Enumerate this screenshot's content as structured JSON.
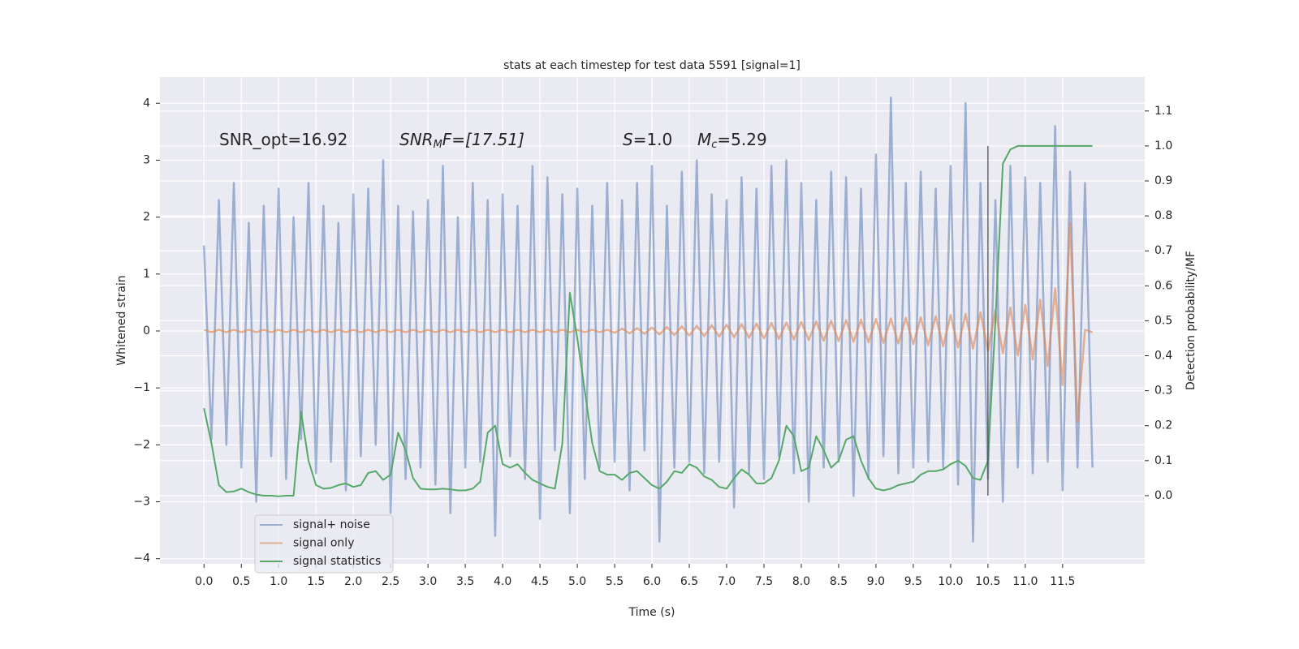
{
  "chart_data": {
    "type": "line",
    "title": "stats at each timestep for test data 5591 [signal=1]",
    "xlabel": "Time (s)",
    "ylabel": "Whitened strain",
    "y2label": "Detection probability/MF",
    "annotations": [
      {
        "base": "SNR_opt=16.92"
      },
      {
        "base": "SNR",
        "sub": "M",
        "tail": "F=[17.51]"
      },
      {
        "base": "S",
        "tail": "=1.0"
      },
      {
        "base": "M",
        "sub": "c",
        "tail": "=5.29"
      }
    ],
    "x": [
      0,
      0.1,
      0.2,
      0.3,
      0.4,
      0.5,
      0.6,
      0.7,
      0.8,
      0.9,
      1,
      1.1,
      1.2,
      1.3,
      1.4,
      1.5,
      1.6,
      1.7,
      1.8,
      1.9,
      2,
      2.1,
      2.2,
      2.3,
      2.4,
      2.5,
      2.6,
      2.7,
      2.8,
      2.9,
      3,
      3.1,
      3.2,
      3.3,
      3.4,
      3.5,
      3.6,
      3.7,
      3.8,
      3.9,
      4,
      4.1,
      4.2,
      4.3,
      4.4,
      4.5,
      4.6,
      4.7,
      4.8,
      4.9,
      5,
      5.1,
      5.2,
      5.3,
      5.4,
      5.5,
      5.6,
      5.7,
      5.8,
      5.9,
      6,
      6.1,
      6.2,
      6.3,
      6.4,
      6.5,
      6.6,
      6.7,
      6.8,
      6.9,
      7,
      7.1,
      7.2,
      7.3,
      7.4,
      7.5,
      7.6,
      7.7,
      7.8,
      7.9,
      8,
      8.1,
      8.2,
      8.3,
      8.4,
      8.5,
      8.6,
      8.7,
      8.8,
      8.9,
      9,
      9.1,
      9.2,
      9.3,
      9.4,
      9.5,
      9.6,
      9.7,
      9.8,
      9.9,
      10,
      10.1,
      10.2,
      10.3,
      10.4,
      10.5,
      10.6,
      10.7,
      10.8,
      10.9,
      11,
      11.1,
      11.2,
      11.3,
      11.4,
      11.5,
      11.6,
      11.7,
      11.8,
      11.9
    ],
    "series": [
      {
        "name": "signal+ noise",
        "color": "#4c72b0",
        "opacity": 0.5,
        "axis": "y",
        "values": [
          1.5,
          -1.9,
          2.3,
          -2.0,
          2.6,
          -2.4,
          1.9,
          -3.0,
          2.2,
          -2.2,
          2.5,
          -2.6,
          2.0,
          -1.9,
          2.6,
          -2.5,
          2.2,
          -2.3,
          1.9,
          -2.8,
          2.4,
          -2.2,
          2.5,
          -2.0,
          3.0,
          -3.2,
          2.2,
          -2.6,
          2.1,
          -2.4,
          2.3,
          -2.7,
          2.9,
          -3.2,
          2.0,
          -2.4,
          2.6,
          -2.3,
          2.3,
          -3.6,
          2.4,
          -2.2,
          2.2,
          -2.6,
          2.9,
          -3.3,
          2.7,
          -2.1,
          2.4,
          -3.2,
          2.5,
          -2.6,
          2.2,
          -2.4,
          2.6,
          -2.3,
          2.3,
          -2.8,
          2.6,
          -2.1,
          2.9,
          -3.7,
          2.2,
          -2.4,
          2.8,
          -2.3,
          3.0,
          -2.5,
          2.4,
          -2.3,
          2.3,
          -3.1,
          2.7,
          -2.5,
          2.5,
          -2.6,
          2.9,
          -2.2,
          3.0,
          -2.5,
          2.6,
          -3.0,
          2.3,
          -2.4,
          2.8,
          -2.3,
          2.7,
          -2.9,
          2.5,
          -2.6,
          3.1,
          -2.2,
          4.1,
          -2.5,
          2.6,
          -2.4,
          2.8,
          -2.3,
          2.5,
          -2.4,
          2.9,
          -2.7,
          4.0,
          -3.7,
          2.6,
          -2.6,
          2.3,
          -3.0,
          2.9,
          -2.4,
          2.7,
          -2.5,
          2.6,
          -2.3,
          3.6,
          -2.8,
          2.8,
          -2.4,
          2.6,
          -2.4
        ]
      },
      {
        "name": "signal only",
        "color": "#dd8452",
        "opacity": 0.6,
        "axis": "y",
        "values": [
          0.02,
          -0.02,
          0.02,
          -0.02,
          0.02,
          -0.02,
          0.02,
          -0.02,
          0.02,
          -0.02,
          0.02,
          -0.02,
          0.02,
          -0.02,
          0.02,
          -0.02,
          0.02,
          -0.02,
          0.02,
          -0.02,
          0.02,
          -0.02,
          0.02,
          -0.02,
          0.02,
          -0.02,
          0.02,
          -0.02,
          0.02,
          -0.02,
          0.02,
          -0.02,
          0.02,
          -0.02,
          0.02,
          -0.02,
          0.02,
          -0.02,
          0.02,
          -0.02,
          0.02,
          -0.02,
          0.02,
          -0.02,
          0.02,
          -0.02,
          0.02,
          -0.02,
          0.02,
          -0.02,
          0.02,
          -0.02,
          0.02,
          -0.02,
          0.02,
          -0.03,
          0.04,
          -0.04,
          0.05,
          -0.05,
          0.06,
          -0.06,
          0.07,
          -0.07,
          0.08,
          -0.08,
          0.09,
          -0.09,
          0.1,
          -0.1,
          0.11,
          -0.11,
          0.12,
          -0.12,
          0.13,
          -0.13,
          0.14,
          -0.14,
          0.15,
          -0.15,
          0.16,
          -0.16,
          0.17,
          -0.17,
          0.18,
          -0.18,
          0.19,
          -0.19,
          0.2,
          -0.2,
          0.21,
          -0.21,
          0.22,
          -0.22,
          0.23,
          -0.23,
          0.24,
          -0.25,
          0.26,
          -0.27,
          0.28,
          -0.29,
          0.3,
          -0.31,
          0.33,
          -0.35,
          0.37,
          -0.39,
          0.41,
          -0.43,
          0.46,
          -0.5,
          0.55,
          -0.62,
          0.75,
          -0.95,
          1.9,
          -1.6,
          0.02,
          -0.02
        ]
      },
      {
        "name": "signal statistics",
        "color": "#55a868",
        "opacity": 1,
        "axis": "y2",
        "values": [
          0.25,
          0.15,
          0.03,
          0.01,
          0.012,
          0.02,
          0.01,
          0.003,
          0.0,
          0.0,
          -0.002,
          0.0,
          0.0,
          0.24,
          0.1,
          0.03,
          0.02,
          0.022,
          0.03,
          0.035,
          0.025,
          0.03,
          0.065,
          0.07,
          0.045,
          0.06,
          0.18,
          0.13,
          0.05,
          0.02,
          0.018,
          0.018,
          0.02,
          0.018,
          0.015,
          0.015,
          0.02,
          0.04,
          0.18,
          0.2,
          0.09,
          0.08,
          0.09,
          0.065,
          0.045,
          0.035,
          0.025,
          0.02,
          0.15,
          0.58,
          0.45,
          0.3,
          0.15,
          0.07,
          0.06,
          0.06,
          0.045,
          0.065,
          0.07,
          0.05,
          0.03,
          0.02,
          0.04,
          0.07,
          0.065,
          0.09,
          0.08,
          0.055,
          0.045,
          0.025,
          0.02,
          0.05,
          0.075,
          0.06,
          0.035,
          0.035,
          0.05,
          0.1,
          0.2,
          0.17,
          0.07,
          0.08,
          0.17,
          0.13,
          0.08,
          0.1,
          0.16,
          0.17,
          0.1,
          0.05,
          0.02,
          0.015,
          0.02,
          0.03,
          0.035,
          0.04,
          0.06,
          0.07,
          0.07,
          0.075,
          0.09,
          0.1,
          0.085,
          0.05,
          0.045,
          0.1,
          0.5,
          0.95,
          0.99,
          1.0,
          1.0,
          1.0,
          1.0,
          1.0,
          1.0,
          1.0,
          1.0,
          1.0,
          1.0,
          1.0
        ]
      }
    ],
    "vline": {
      "x": 10.5,
      "y2": [
        0,
        1
      ],
      "color": "#444444"
    },
    "xlim": [
      -0.59,
      12.6
    ],
    "ylim": [
      -4.09,
      4.46
    ],
    "y2lim": [
      -0.195,
      1.197
    ],
    "xticks": [
      {
        "value": 0,
        "label": "0.0"
      },
      0.5,
      {
        "value": 1,
        "label": "1.0"
      },
      1.5,
      {
        "value": 2,
        "label": "2.0"
      },
      2.5,
      {
        "value": 3,
        "label": "3.0"
      },
      3.5,
      {
        "value": 4,
        "label": "4.0"
      },
      4.5,
      {
        "value": 5,
        "label": "5.0"
      },
      5.5,
      {
        "value": 6,
        "label": "6.0"
      },
      6.5,
      {
        "value": 7,
        "label": "7.0"
      },
      7.5,
      {
        "value": 8,
        "label": "8.0"
      },
      8.5,
      {
        "value": 9,
        "label": "9.0"
      },
      9.5,
      {
        "value": 10,
        "label": "10.0"
      },
      10.5,
      {
        "value": 11,
        "label": "11.0"
      },
      11.5
    ],
    "yticks": [
      {
        "value": -4,
        "label": "−4"
      },
      {
        "value": -3,
        "label": "−3"
      },
      {
        "value": -2,
        "label": "−2"
      },
      {
        "value": -1,
        "label": "−1"
      },
      0,
      1,
      2,
      3,
      4
    ],
    "y2ticks": [
      {
        "value": 0,
        "label": "0.0"
      },
      0.1,
      0.2,
      0.3,
      0.4,
      0.5,
      0.6,
      0.7,
      0.8,
      0.9,
      {
        "value": 1,
        "label": "1.0"
      },
      1.1
    ],
    "grid": true,
    "background": "#eaeaf2",
    "legend": "lower left"
  }
}
